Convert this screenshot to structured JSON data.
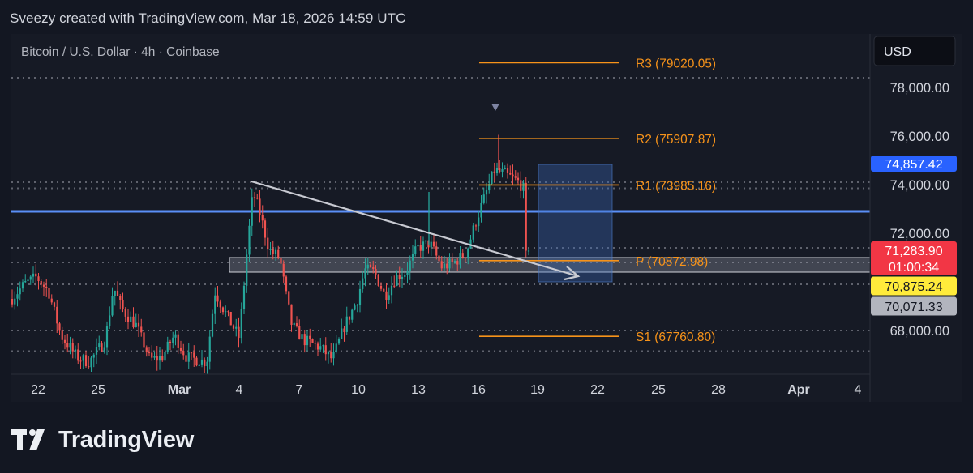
{
  "header": {
    "credit": "Sveezy created with TradingView.com, Mar 18, 2026 14:59 UTC"
  },
  "brand": {
    "name": "TradingView"
  },
  "chart_data": {
    "type": "candlestick",
    "title": "Bitcoin / U.S. Dollar · 4h · Coinbase",
    "currency": "USD",
    "y_ticks": [
      "78,000.00",
      "76,000.00",
      "74,000.00",
      "72,000.00",
      "68,000.00"
    ],
    "y_tick_values": [
      78000,
      76000,
      74000,
      72000,
      68000
    ],
    "x_ticks": [
      "22",
      "25",
      "Mar",
      "4",
      "7",
      "10",
      "13",
      "16",
      "19",
      "22",
      "25",
      "28",
      "Apr",
      "4"
    ],
    "ylim": [
      66300,
      79900
    ],
    "pivots": [
      {
        "label": "R3 (79020.05)",
        "value": 79020.05
      },
      {
        "label": "R2 (75907.87)",
        "value": 75907.87
      },
      {
        "label": "R1 (73985.16)",
        "value": 73985.16
      },
      {
        "label": "P (70872.98)",
        "value": 70872.98
      },
      {
        "label": "S1 (67760.80)",
        "value": 67760.8
      }
    ],
    "price_labels": [
      {
        "text": "74,857.42",
        "value": 74857.42,
        "color": "#2962ff"
      },
      {
        "text": "71,283.90",
        "value": 71283.9,
        "color": "#f23645"
      },
      {
        "text": "01:00:34",
        "value": 70900,
        "color": "#f23645"
      },
      {
        "text": "70,875.24",
        "value": 70875.24,
        "color": "#ffeb3b"
      },
      {
        "text": "70,071.33",
        "value": 70071.33,
        "color": "#b2b5be"
      }
    ],
    "horizontal_level": 72900,
    "dotted_levels": [
      78400,
      74100,
      73850,
      71400,
      70800,
      69900,
      68000,
      67150
    ],
    "zone": {
      "low": 70400,
      "high": 71000
    },
    "colors": {
      "up": "#26a69a",
      "down": "#ef5350",
      "pivot": "#f7931a",
      "level": "#5a8ff7",
      "grid_dot": "#787b86"
    }
  }
}
